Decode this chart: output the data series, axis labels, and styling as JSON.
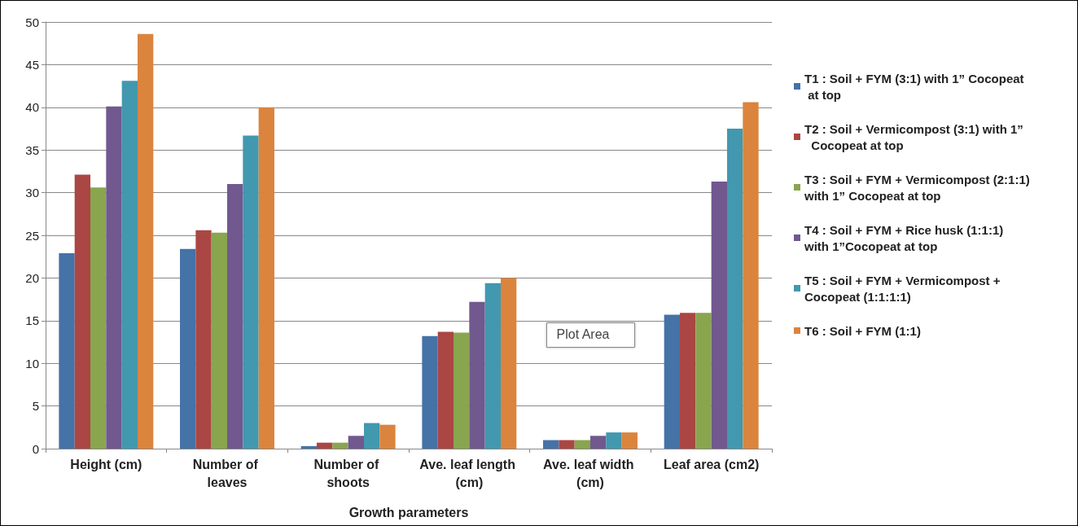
{
  "chart_data": {
    "type": "bar",
    "xlabel": "Growth parameters",
    "categories": [
      "Height (cm)",
      "Number of leaves",
      "Number of shoots",
      "Ave. leaf length (cm)",
      "Ave. leaf width (cm)",
      "Leaf area (cm2)"
    ],
    "series": [
      {
        "name": "T1 : Soil + FYM (3:1) with 1” Cocopeat at top",
        "color": "#4572a7",
        "values": [
          22.9,
          23.4,
          0.3,
          13.2,
          1.0,
          15.7
        ]
      },
      {
        "name": "T2 : Soil + Vermicompost (3:1) with 1”  Cocopeat at top",
        "color": "#aa4643",
        "values": [
          32.1,
          25.6,
          0.7,
          13.7,
          1.0,
          15.9
        ]
      },
      {
        "name": "T3 : Soil + FYM + Vermicompost (2:1:1) with 1” Cocopeat at top",
        "color": "#89a54e",
        "values": [
          30.6,
          25.3,
          0.7,
          13.6,
          1.0,
          15.9
        ]
      },
      {
        "name": "T4 : Soil + FYM + Rice husk (1:1:1) with 1”Cocopeat at top",
        "color": "#71588f",
        "values": [
          40.1,
          31.0,
          1.5,
          17.2,
          1.5,
          31.3
        ]
      },
      {
        "name": "T5 : Soil + FYM + Vermicompost + Cocopeat (1:1:1:1)",
        "color": "#4198af",
        "values": [
          43.1,
          36.7,
          3.0,
          19.4,
          1.9,
          37.5
        ]
      },
      {
        "name": "T6 : Soil + FYM (1:1)",
        "color": "#db843d",
        "values": [
          48.6,
          40.0,
          2.8,
          20.0,
          1.9,
          40.6
        ]
      }
    ],
    "ylim": [
      0,
      50
    ],
    "yticks": [
      0,
      5,
      10,
      15,
      20,
      25,
      30,
      35,
      40,
      45,
      50
    ],
    "grid": "y",
    "legend": "right",
    "annotations": [
      "Plot Area"
    ]
  }
}
